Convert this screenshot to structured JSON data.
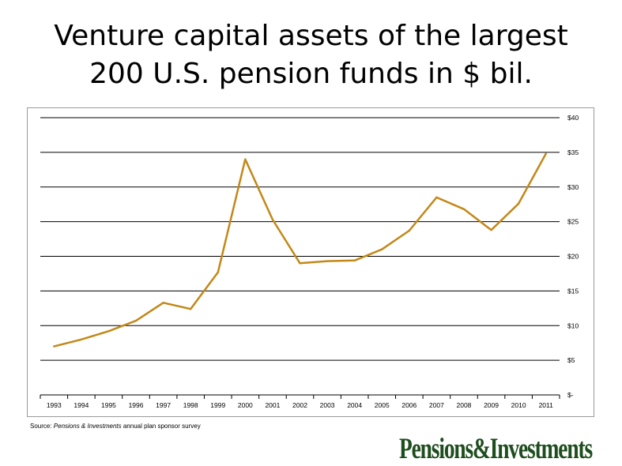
{
  "title_line1": "Venture capital assets of the largest",
  "title_line2": "200 U.S. pension funds in $ bil.",
  "source": {
    "prefix": "Source: ",
    "publication": "Pensions & Investments",
    "suffix": " annual plan sponsor survey"
  },
  "logo_text": "Pensions&Investments",
  "colors": {
    "line": "#c38818",
    "grid": "#000000",
    "logo": "#1e4d1e"
  },
  "chart_data": {
    "type": "line",
    "title": "Venture capital assets of the largest 200 U.S. pension funds in $ bil.",
    "xlabel": "",
    "ylabel": "",
    "categories": [
      "1993",
      "1994",
      "1995",
      "1996",
      "1997",
      "1998",
      "1999",
      "2000",
      "2001",
      "2002",
      "2003",
      "2004",
      "2005",
      "2006",
      "2007",
      "2008",
      "2009",
      "2010",
      "2011"
    ],
    "values": [
      7.0,
      8.0,
      9.2,
      10.7,
      13.3,
      12.4,
      17.7,
      34.0,
      25.3,
      19.0,
      19.3,
      19.4,
      21.0,
      23.7,
      28.5,
      26.8,
      23.8,
      27.6,
      34.8
    ],
    "ylim": [
      0,
      40
    ],
    "yticks": [
      0,
      5,
      10,
      15,
      20,
      25,
      30,
      35,
      40
    ],
    "ytick_labels": [
      "$-",
      "$5",
      "$10",
      "$15",
      "$20",
      "$25",
      "$30",
      "$35",
      "$40"
    ],
    "y_axis_side": "right",
    "grid": true,
    "legend": "none"
  }
}
